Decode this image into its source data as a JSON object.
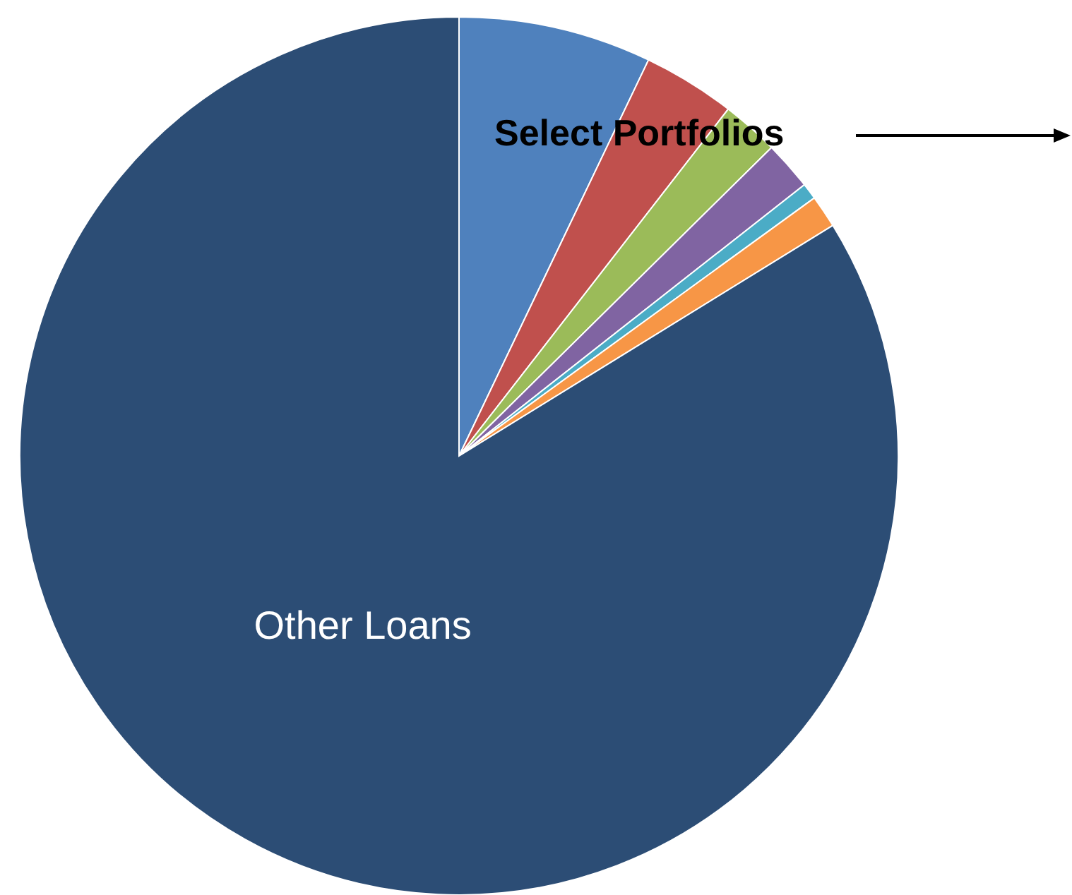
{
  "chart_data": {
    "type": "pie",
    "categories": [
      null,
      null,
      null,
      null,
      null,
      null,
      "Other Loans"
    ],
    "values": [
      7.1,
      3.4,
      2.1,
      1.8,
      0.6,
      1.2,
      83.8
    ],
    "colors": [
      "#4f81bd",
      "#c0504d",
      "#9bbb59",
      "#8064a2",
      "#4bacc6",
      "#f79646",
      "#2c4d75"
    ],
    "annotations": [
      "Select Portfolios"
    ]
  }
}
